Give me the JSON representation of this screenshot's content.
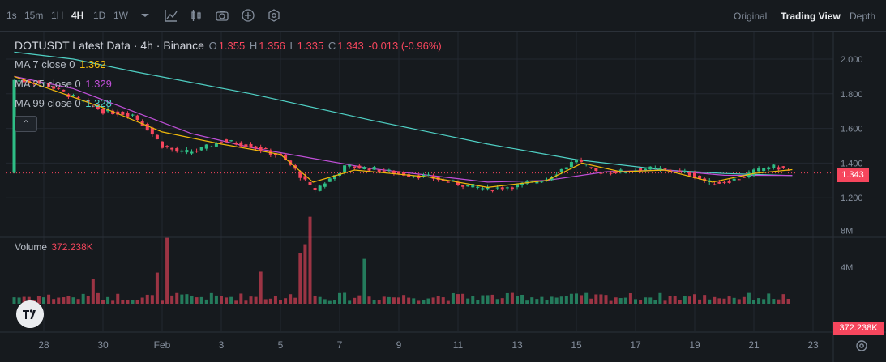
{
  "toolbar": {
    "intervals": [
      "1s",
      "15m",
      "1H",
      "4H",
      "1D",
      "1W"
    ],
    "active_interval": "4H",
    "icons": [
      "chevron-down-icon",
      "indicator-icon",
      "candle-type-icon",
      "camera-icon",
      "add-icon",
      "settings-hex-icon"
    ],
    "views": [
      "Original",
      "Trading View",
      "Depth"
    ],
    "active_view": "Trading View"
  },
  "header": {
    "title": "DOTUSDT Latest Data · 4h · Binance",
    "o_label": "O",
    "o_value": "1.355",
    "h_label": "H",
    "h_value": "1.356",
    "l_label": "L",
    "l_value": "1.335",
    "c_label": "C",
    "c_value": "1.343",
    "change": "-0.013 (-0.96%)"
  },
  "indicators": {
    "ma7": {
      "label": "MA 7 close 0",
      "value": "1.362",
      "color": "#f0b90b"
    },
    "ma25": {
      "label": "MA 25 close 0",
      "value": "1.329",
      "color": "#c04fd8"
    },
    "ma99": {
      "label": "MA 99 close 0",
      "value": "1.328",
      "color": "#4fd1c5"
    }
  },
  "collapse_glyph": "⌃",
  "volume": {
    "label": "Volume",
    "value": "372.238K"
  },
  "price_tag": "1.343",
  "volume_tag": "372.238K",
  "colors": {
    "up": "#2ebd85",
    "down": "#f6465d",
    "grid": "#232830",
    "background": "#161a1e"
  },
  "chart_data": {
    "type": "candlestick",
    "symbol": "DOTUSDT",
    "interval": "4h",
    "x_ticks": [
      "28",
      "30",
      "Feb",
      "3",
      "5",
      "7",
      "9",
      "11",
      "13",
      "15",
      "17",
      "19",
      "21",
      "23"
    ],
    "y_ticks": [
      "2.000",
      "1.800",
      "1.600",
      "1.400",
      "1.200"
    ],
    "ylim": [
      1.1,
      2.05
    ],
    "volume_ticks": [
      "8M",
      "4M"
    ],
    "volume_ylim": [
      0,
      10000000
    ],
    "close_path_points": [
      {
        "day": 27.0,
        "close": 1.88
      },
      {
        "day": 28.0,
        "close": 1.86
      },
      {
        "day": 29.0,
        "close": 1.78
      },
      {
        "day": 30.0,
        "close": 1.7
      },
      {
        "day": 31.0,
        "close": 1.68
      },
      {
        "day": 31.5,
        "close": 1.6
      },
      {
        "day": 32.0,
        "close": 1.5
      },
      {
        "day": 32.6,
        "close": 1.46
      },
      {
        "day": 33.2,
        "close": 1.47
      },
      {
        "day": 34.0,
        "close": 1.53
      },
      {
        "day": 35.0,
        "close": 1.5
      },
      {
        "day": 36.0,
        "close": 1.44
      },
      {
        "day": 36.5,
        "close": 1.36
      },
      {
        "day": 37.1,
        "close": 1.24
      },
      {
        "day": 37.6,
        "close": 1.3
      },
      {
        "day": 38.2,
        "close": 1.38
      },
      {
        "day": 39.0,
        "close": 1.37
      },
      {
        "day": 40.0,
        "close": 1.34
      },
      {
        "day": 41.0,
        "close": 1.32
      },
      {
        "day": 42.0,
        "close": 1.28
      },
      {
        "day": 43.0,
        "close": 1.25
      },
      {
        "day": 44.0,
        "close": 1.27
      },
      {
        "day": 45.0,
        "close": 1.31
      },
      {
        "day": 46.0,
        "close": 1.42
      },
      {
        "day": 46.6,
        "close": 1.35
      },
      {
        "day": 47.5,
        "close": 1.35
      },
      {
        "day": 48.3,
        "close": 1.37
      },
      {
        "day": 49.0,
        "close": 1.36
      },
      {
        "day": 49.8,
        "close": 1.34
      },
      {
        "day": 50.6,
        "close": 1.28
      },
      {
        "day": 51.5,
        "close": 1.31
      },
      {
        "day": 52.0,
        "close": 1.35
      },
      {
        "day": 52.5,
        "close": 1.38
      },
      {
        "day": 53.0,
        "close": 1.37
      },
      {
        "day": 53.3,
        "close": 1.343
      }
    ],
    "ma7_points": [
      {
        "day": 27.0,
        "value": 1.9
      },
      {
        "day": 30.0,
        "value": 1.72
      },
      {
        "day": 32.0,
        "value": 1.58
      },
      {
        "day": 34.0,
        "value": 1.51
      },
      {
        "day": 36.0,
        "value": 1.45
      },
      {
        "day": 37.1,
        "value": 1.29
      },
      {
        "day": 38.5,
        "value": 1.36
      },
      {
        "day": 41.0,
        "value": 1.32
      },
      {
        "day": 43.0,
        "value": 1.26
      },
      {
        "day": 45.0,
        "value": 1.3
      },
      {
        "day": 46.2,
        "value": 1.4
      },
      {
        "day": 47.5,
        "value": 1.35
      },
      {
        "day": 49.0,
        "value": 1.36
      },
      {
        "day": 50.6,
        "value": 1.29
      },
      {
        "day": 52.0,
        "value": 1.34
      },
      {
        "day": 53.3,
        "value": 1.362
      }
    ],
    "ma25_points": [
      {
        "day": 27.0,
        "value": 1.9
      },
      {
        "day": 29.0,
        "value": 1.83
      },
      {
        "day": 31.0,
        "value": 1.7
      },
      {
        "day": 33.0,
        "value": 1.57
      },
      {
        "day": 35.0,
        "value": 1.49
      },
      {
        "day": 37.0,
        "value": 1.43
      },
      {
        "day": 39.0,
        "value": 1.37
      },
      {
        "day": 41.0,
        "value": 1.33
      },
      {
        "day": 43.0,
        "value": 1.29
      },
      {
        "day": 45.0,
        "value": 1.3
      },
      {
        "day": 47.0,
        "value": 1.35
      },
      {
        "day": 49.0,
        "value": 1.36
      },
      {
        "day": 51.0,
        "value": 1.33
      },
      {
        "day": 53.3,
        "value": 1.329
      }
    ],
    "ma99_points": [
      {
        "day": 27.0,
        "value": 2.04
      },
      {
        "day": 29.0,
        "value": 2.0
      },
      {
        "day": 31.0,
        "value": 1.93
      },
      {
        "day": 35.0,
        "value": 1.8
      },
      {
        "day": 39.0,
        "value": 1.65
      },
      {
        "day": 43.0,
        "value": 1.51
      },
      {
        "day": 46.0,
        "value": 1.42
      },
      {
        "day": 49.0,
        "value": 1.36
      },
      {
        "day": 51.0,
        "value": 1.34
      },
      {
        "day": 53.3,
        "value": 1.328
      }
    ],
    "volume_spikes": [
      {
        "day": 32.1,
        "volume": 7200000
      },
      {
        "day": 31.8,
        "volume": 3400000
      },
      {
        "day": 37.0,
        "volume": 9500000
      },
      {
        "day": 36.8,
        "volume": 6500000
      },
      {
        "day": 36.6,
        "volume": 5500000
      },
      {
        "day": 38.8,
        "volume": 4900000
      },
      {
        "day": 35.3,
        "volume": 3500000
      },
      {
        "day": 29.6,
        "volume": 2700000
      }
    ],
    "last_price": 1.343,
    "last_volume": 372238
  }
}
